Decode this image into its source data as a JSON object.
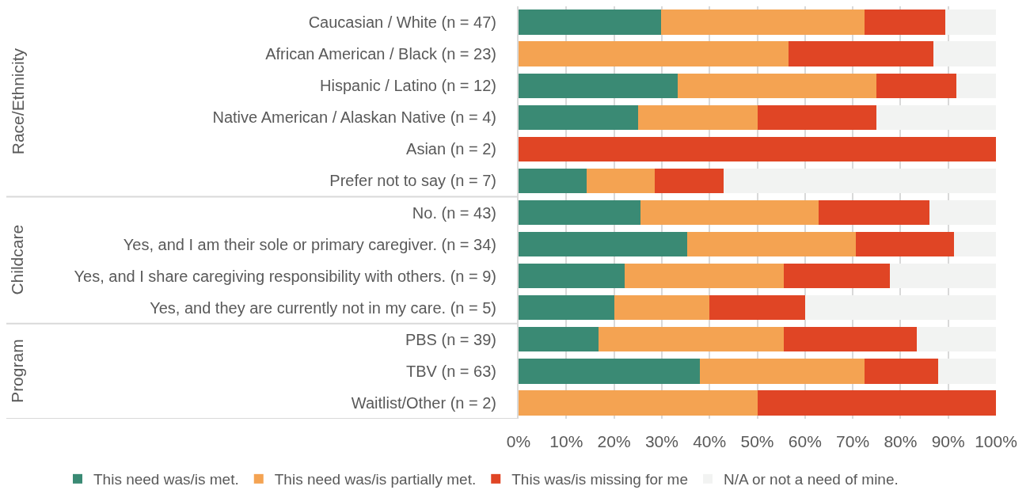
{
  "chart_data": {
    "type": "bar",
    "orientation": "horizontal",
    "stacked": true,
    "categories": [
      "Caucasian / White (n = 47)",
      "African American / Black (n = 23)",
      "Hispanic / Latino (n = 12)",
      "Native American / Alaskan Native (n = 4)",
      "Asian (n = 2)",
      "Prefer not to say (n = 7)",
      "No. (n = 43)",
      "Yes, and I am their sole or primary caregiver. (n = 34)",
      "Yes, and I share caregiving responsibility with others. (n = 9)",
      "Yes, and they are currently not in my care. (n = 5)",
      "PBS (n = 39)",
      "TBV (n = 63)",
      "Waitlist/Other (n = 2)"
    ],
    "series": [
      {
        "name": "This need was/is met.",
        "color": "#3a8a74",
        "values": [
          29.8,
          0,
          33.3,
          25,
          0,
          14.3,
          25.6,
          35.3,
          22.2,
          20,
          16.7,
          37.9,
          0
        ]
      },
      {
        "name": "This need was/is partially met.",
        "color": "#f4a352",
        "values": [
          42.6,
          56.5,
          41.7,
          25,
          0,
          14.3,
          37.2,
          35.3,
          33.3,
          20,
          38.9,
          34.5,
          50
        ]
      },
      {
        "name": "This was/is missing for me",
        "color": "#e04525",
        "values": [
          17.0,
          30.4,
          16.7,
          25,
          100,
          14.3,
          23.3,
          20.6,
          22.2,
          20,
          27.8,
          15.5,
          50
        ]
      },
      {
        "name": "N/A or not a need of mine.",
        "color": "#f2f3f2",
        "values": [
          10.6,
          13.1,
          8.3,
          25,
          0,
          57.1,
          13.9,
          8.8,
          22.3,
          40,
          16.6,
          12.1,
          0
        ]
      }
    ],
    "xlim": [
      0,
      100
    ],
    "xticks": [
      {
        "value": 0,
        "label": "0%"
      },
      {
        "value": 10,
        "label": "10%"
      },
      {
        "value": 20,
        "label": "20%"
      },
      {
        "value": 30,
        "label": "30%"
      },
      {
        "value": 40,
        "label": "40%"
      },
      {
        "value": 50,
        "label": "50%"
      },
      {
        "value": 60,
        "label": "60%"
      },
      {
        "value": 70,
        "label": "70%"
      },
      {
        "value": 80,
        "label": "80%"
      },
      {
        "value": 90,
        "label": "90%"
      },
      {
        "value": 100,
        "label": "100%"
      }
    ],
    "annotations": [
      "Race/Ethnicity",
      "Childcare",
      "Program"
    ],
    "grid": "x",
    "legend": "bottom"
  }
}
